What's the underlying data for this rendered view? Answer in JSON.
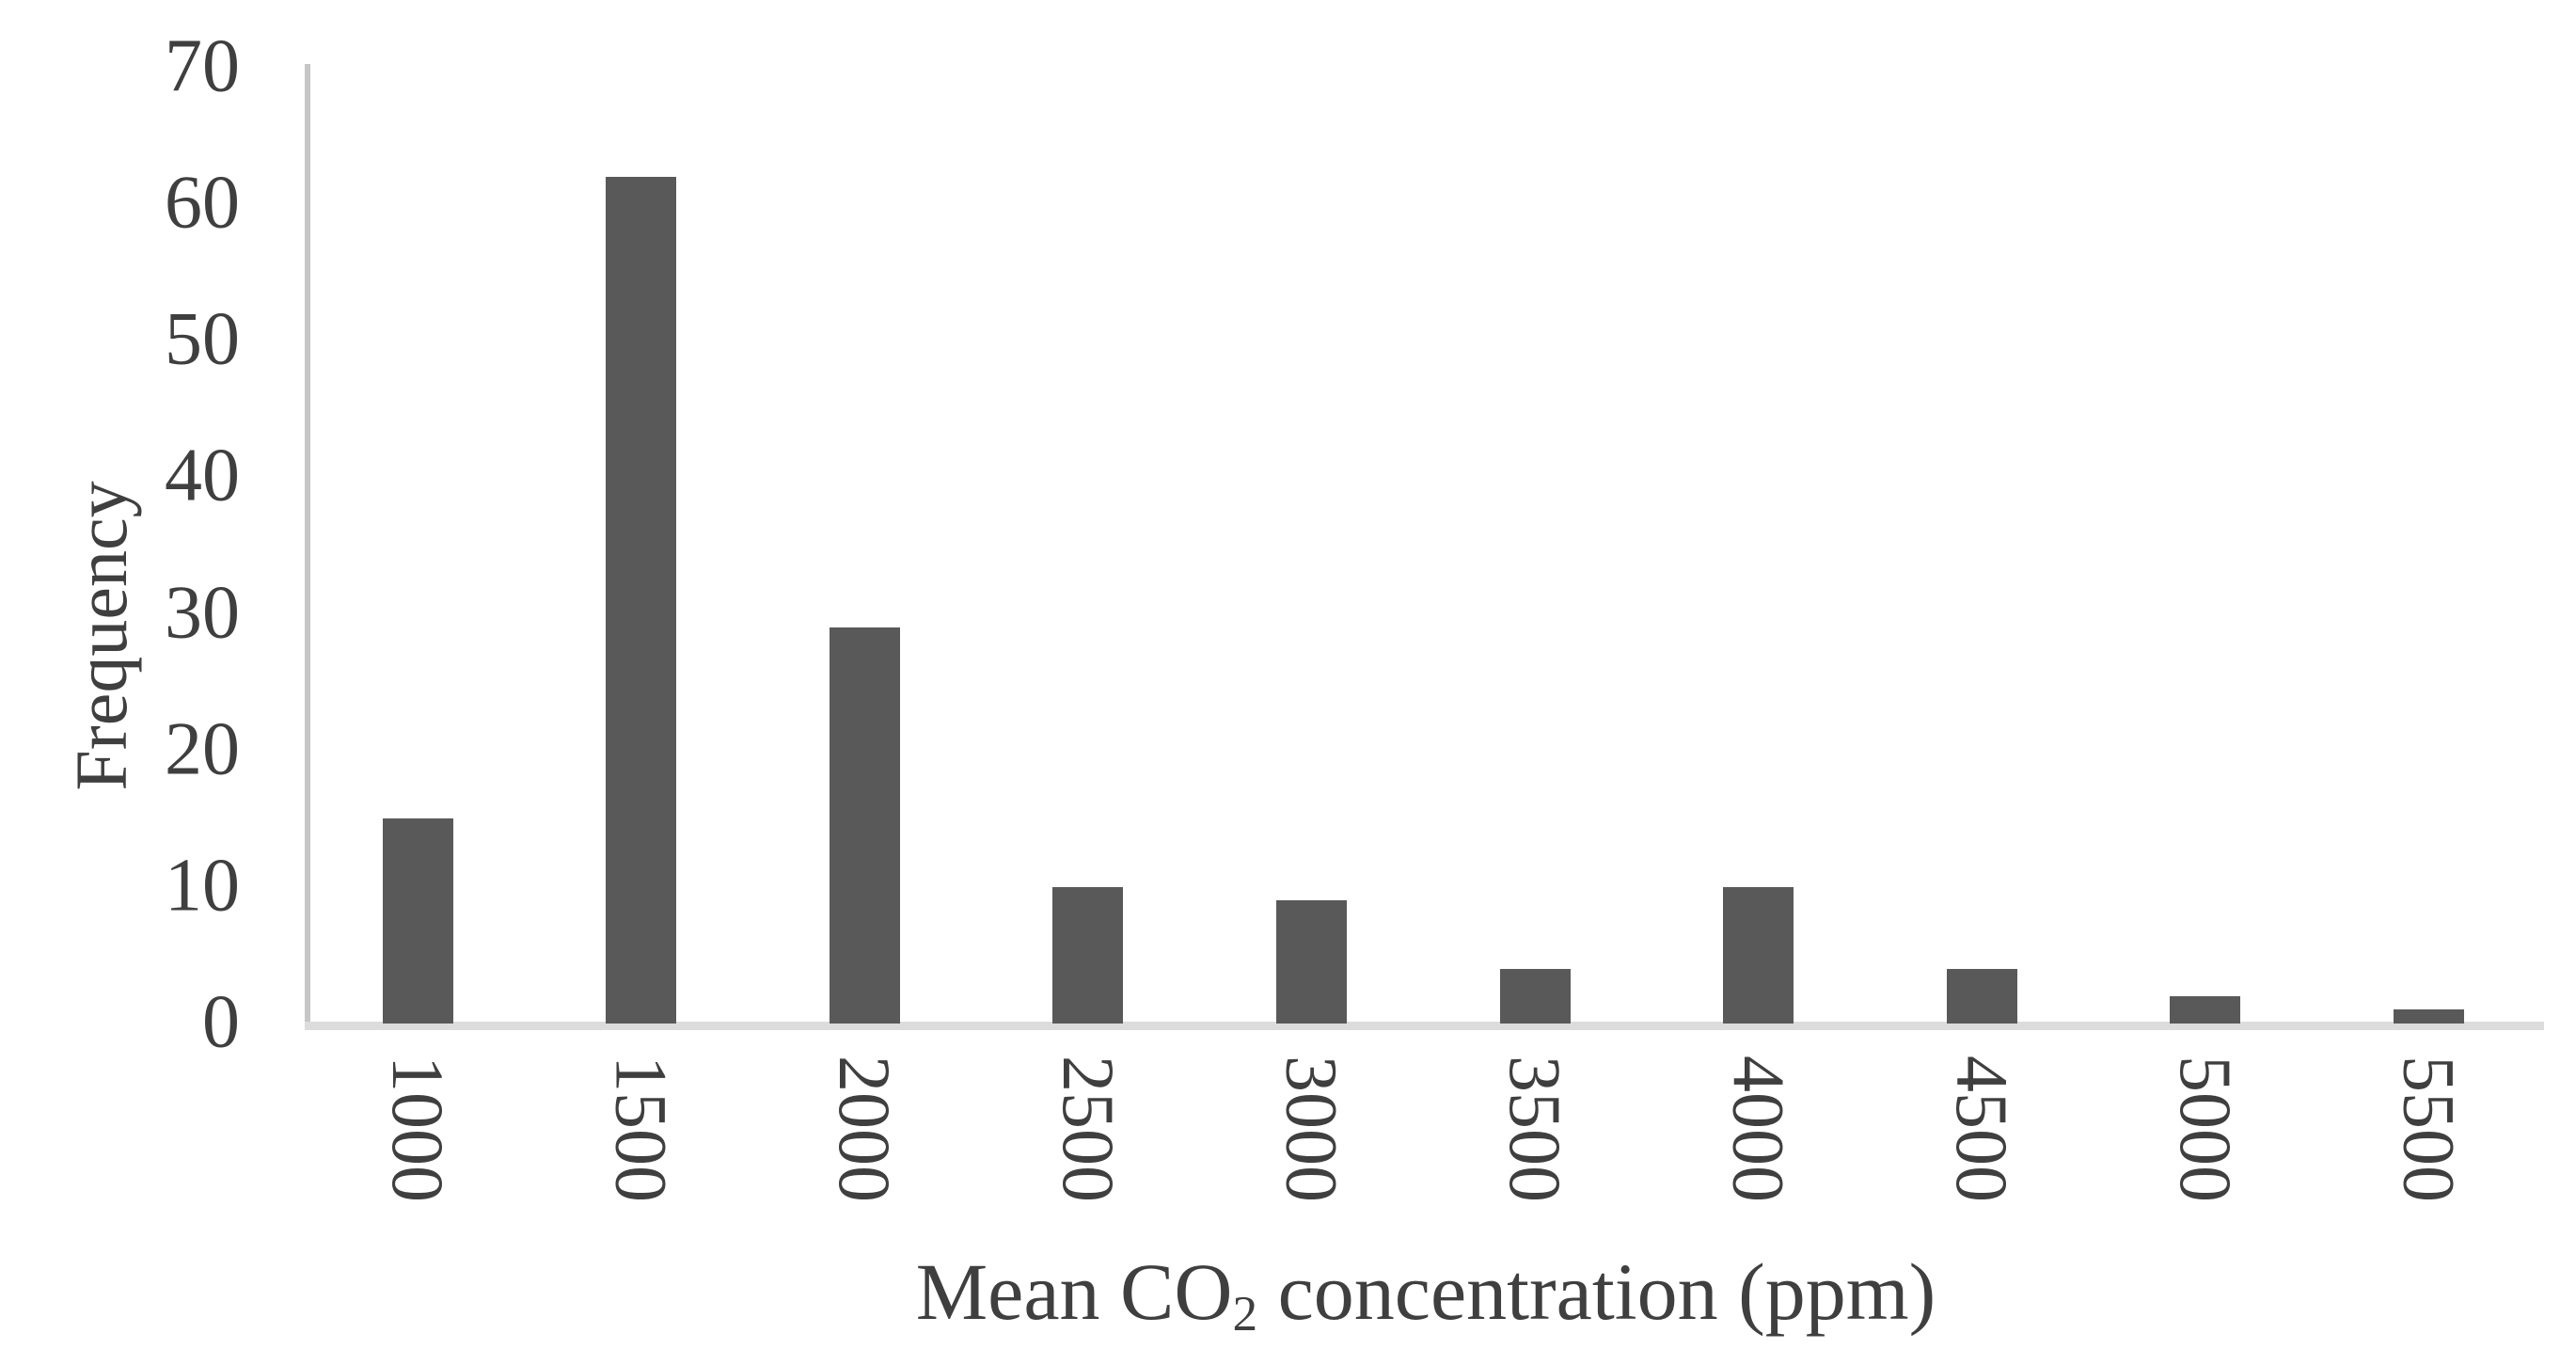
{
  "chart_data": {
    "type": "bar",
    "categories": [
      "1000",
      "1500",
      "2000",
      "2500",
      "3000",
      "3500",
      "4000",
      "4500",
      "5000",
      "5500"
    ],
    "values": [
      15,
      62,
      29,
      10,
      9,
      4,
      10,
      4,
      2,
      1
    ],
    "title": "",
    "xlabel": "Mean CO2 concentration (ppm)",
    "xlabel_parts": {
      "prefix": "Mean CO",
      "subscript": "2",
      "suffix": " concentration (ppm)"
    },
    "ylabel": "Frequency",
    "ylim": [
      0,
      70
    ],
    "yticks": [
      0,
      10,
      20,
      30,
      40,
      50,
      60,
      70
    ],
    "grid": false,
    "legend": null,
    "colors": {
      "bar": "#595959",
      "y_axis_line": "#c6c6c6",
      "x_axis_line": "#dcdcdc",
      "text": "#3f3f3f"
    }
  }
}
